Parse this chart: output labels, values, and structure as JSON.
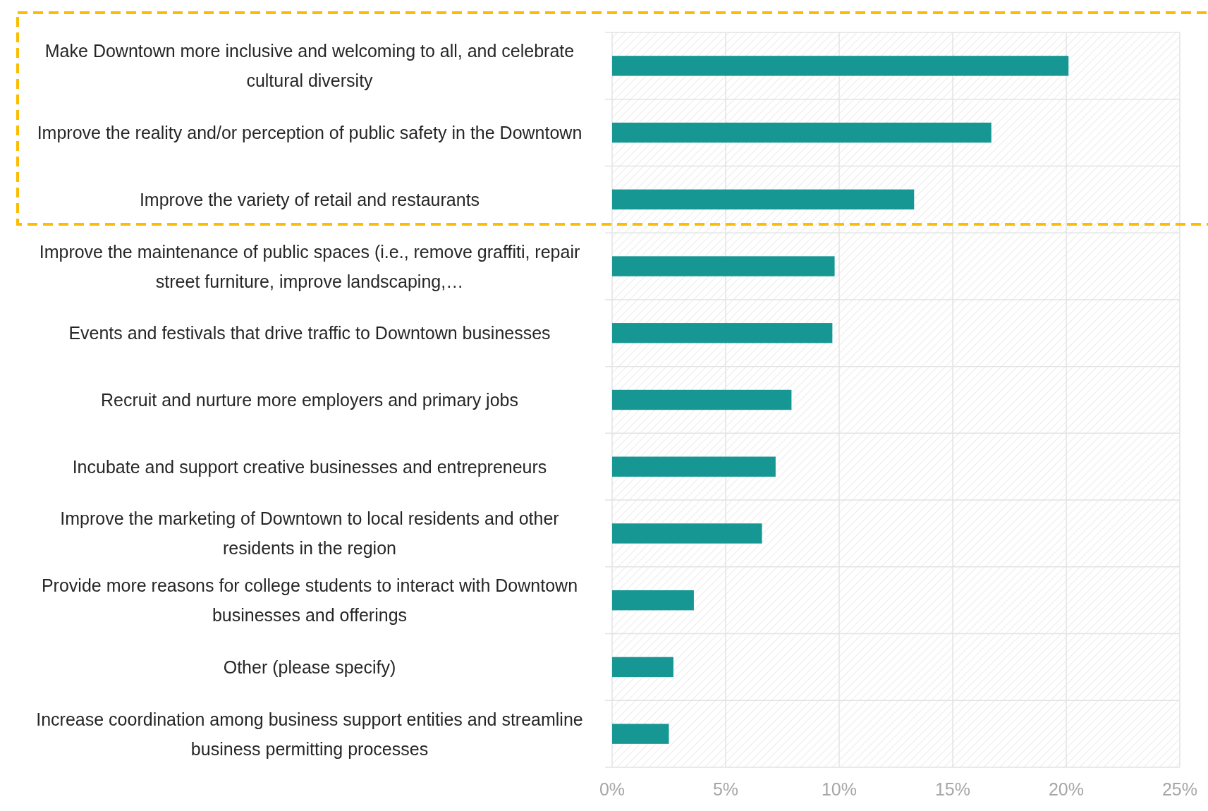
{
  "chart_data": {
    "type": "bar",
    "orientation": "horizontal",
    "categories": [
      "Make Downtown more inclusive and welcoming to all, and celebrate cultural diversity",
      "Improve the reality and/or perception of public safety in the Downtown",
      "Improve the variety of retail and restaurants",
      "Improve the maintenance of public spaces (i.e., remove graffiti, repair street furniture, improve landscaping,…",
      "Events and festivals that drive traffic to Downtown businesses",
      "Recruit and nurture more employers and primary jobs",
      "Incubate and support creative businesses and entrepreneurs",
      "Improve the marketing of Downtown to local residents and other residents in the region",
      "Provide more reasons for college students to interact with Downtown businesses and offerings",
      "Other (please specify)",
      "Increase coordination among business support entities and streamline business permitting processes"
    ],
    "values": [
      20.1,
      16.7,
      13.3,
      9.8,
      9.7,
      7.9,
      7.2,
      6.6,
      3.6,
      2.7,
      2.5
    ],
    "color": "#169794",
    "xlim": [
      0,
      25
    ],
    "xticks": [
      {
        "value": 0,
        "label": "0%"
      },
      {
        "value": 5,
        "label": "5%"
      },
      {
        "value": 10,
        "label": "10%"
      },
      {
        "value": 15,
        "label": "15%"
      },
      {
        "value": 20,
        "label": "20%"
      },
      {
        "value": 25,
        "label": "25%"
      }
    ],
    "grid": true
  }
}
